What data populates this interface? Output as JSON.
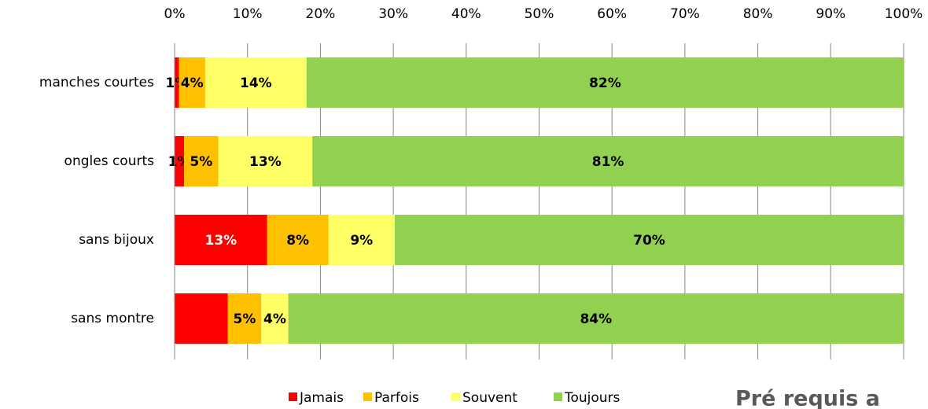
{
  "chart_data": {
    "type": "stacked_barh",
    "categories": [
      "manches courtes",
      "ongles courts",
      "sans bijoux",
      "sans montre"
    ],
    "series": [
      {
        "name": "Jamais",
        "color": "#ff0000",
        "values": [
          0.6,
          1.3,
          12.7,
          7.3
        ],
        "value_labels": [
          "1%",
          "1%",
          "13%",
          null
        ]
      },
      {
        "name": "Parfois",
        "color": "#ffc000",
        "values": [
          3.6,
          4.7,
          8.4,
          4.6
        ],
        "value_labels": [
          "4%",
          "5%",
          "8%",
          "5%"
        ]
      },
      {
        "name": "Souvent",
        "color": "#ffff66",
        "values": [
          13.9,
          12.9,
          9.1,
          3.7
        ],
        "value_labels": [
          "14%",
          "13%",
          "9%",
          "4%"
        ]
      },
      {
        "name": "Toujours",
        "color": "#92d050",
        "values": [
          81.9,
          81.1,
          69.8,
          84.4
        ],
        "value_labels": [
          "82%",
          "81%",
          "70%",
          "84%"
        ]
      }
    ],
    "xlim": [
      0,
      100
    ],
    "xticks": [
      {
        "value": 0,
        "label": "0%"
      },
      {
        "value": 10,
        "label": "10%"
      },
      {
        "value": 20,
        "label": "20%"
      },
      {
        "value": 30,
        "label": "30%"
      },
      {
        "value": 40,
        "label": "40%"
      },
      {
        "value": 50,
        "label": "50%"
      },
      {
        "value": 60,
        "label": "60%"
      },
      {
        "value": 70,
        "label": "70%"
      },
      {
        "value": 80,
        "label": "80%"
      },
      {
        "value": 90,
        "label": "90%"
      },
      {
        "value": 100,
        "label": "100%"
      }
    ],
    "grid": true,
    "legend": "bottom",
    "annotation": "Pré requis a"
  }
}
